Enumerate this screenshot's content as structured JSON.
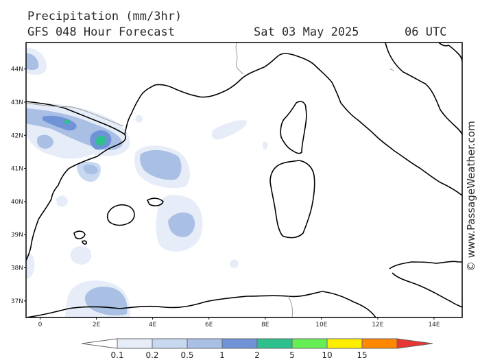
{
  "header": {
    "title": "Precipitation (mm/3hr)",
    "subtitle": "GFS 048 Hour Forecast",
    "date": "Sat 03 May 2025",
    "time": "06 UTC"
  },
  "credit": "© www.PassageWeather.com",
  "map": {
    "lon_range": [
      -0.5,
      15
    ],
    "lat_range": [
      36.5,
      44.8
    ],
    "lon_ticks": [
      {
        "value": 0,
        "label": "0"
      },
      {
        "value": 2,
        "label": "2E"
      },
      {
        "value": 4,
        "label": "4E"
      },
      {
        "value": 6,
        "label": "6E"
      },
      {
        "value": 8,
        "label": "8E"
      },
      {
        "value": 10,
        "label": "10E"
      },
      {
        "value": 12,
        "label": "12E"
      },
      {
        "value": 14,
        "label": "14E"
      }
    ],
    "lat_ticks": [
      {
        "value": 44,
        "label": "44N"
      },
      {
        "value": 43,
        "label": "43N"
      },
      {
        "value": 42,
        "label": "42N"
      },
      {
        "value": 41,
        "label": "41N"
      },
      {
        "value": 40,
        "label": "40N"
      },
      {
        "value": 39,
        "label": "39N"
      },
      {
        "value": 38,
        "label": "38N"
      },
      {
        "value": 37,
        "label": "37N"
      }
    ]
  },
  "legend": {
    "unit": "mm/3hr",
    "bins": [
      {
        "color": "#e6edf8"
      },
      {
        "color": "#c8d8f0"
      },
      {
        "color": "#a9c0e4"
      },
      {
        "color": "#6f93d6"
      },
      {
        "color": "#2ec08d"
      },
      {
        "color": "#66ee55"
      },
      {
        "color": "#ffee00"
      },
      {
        "color": "#ff8800"
      }
    ],
    "low_color": "#ffffff",
    "high_color": "#e83535",
    "labels": [
      "0.1",
      "0.2",
      "0.5",
      "1",
      "2",
      "5",
      "10",
      "15"
    ]
  }
}
